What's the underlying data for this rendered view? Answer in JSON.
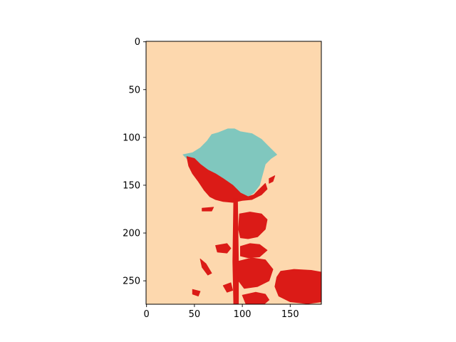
{
  "chart_data": {
    "type": "heatmap",
    "title": "",
    "xlabel": "",
    "ylabel": "",
    "image_shape": [
      275,
      183
    ],
    "xlim": [
      -0.5,
      182.5
    ],
    "ylim": [
      274.5,
      -0.5
    ],
    "xticks": [
      0,
      50,
      100,
      150
    ],
    "yticks": [
      0,
      50,
      100,
      150,
      200,
      250
    ],
    "xtick_labels": [
      "0",
      "50",
      "100",
      "150"
    ],
    "ytick_labels": [
      "0",
      "50",
      "100",
      "150",
      "200",
      "250"
    ],
    "palette": {
      "background": "#fdd8ae",
      "bloom": "#80c7be",
      "leaf_and_stem": "#db1b17"
    },
    "regions": [
      {
        "name": "rose-bloom",
        "color_key": "bloom",
        "polygon": [
          [
            38,
            118
          ],
          [
            48,
            116
          ],
          [
            56,
            111
          ],
          [
            63,
            104
          ],
          [
            68,
            97
          ],
          [
            75,
            95
          ],
          [
            85,
            91
          ],
          [
            92,
            91
          ],
          [
            98,
            94
          ],
          [
            110,
            96
          ],
          [
            120,
            102
          ],
          [
            128,
            110
          ],
          [
            136,
            118
          ],
          [
            130,
            122
          ],
          [
            124,
            128
          ],
          [
            118,
            150
          ],
          [
            112,
            158
          ],
          [
            106,
            162
          ],
          [
            98,
            158
          ],
          [
            90,
            150
          ],
          [
            80,
            143
          ],
          [
            72,
            138
          ],
          [
            64,
            134
          ],
          [
            56,
            128
          ],
          [
            50,
            122
          ],
          [
            44,
            124
          ],
          [
            40,
            120
          ]
        ]
      },
      {
        "name": "bloom-lower-petals",
        "color_key": "leaf_and_stem",
        "polygon": [
          [
            42,
            120
          ],
          [
            50,
            122
          ],
          [
            56,
            128
          ],
          [
            64,
            134
          ],
          [
            72,
            138
          ],
          [
            80,
            143
          ],
          [
            90,
            150
          ],
          [
            98,
            158
          ],
          [
            106,
            162
          ],
          [
            112,
            160
          ],
          [
            118,
            154
          ],
          [
            124,
            148
          ],
          [
            126,
            154
          ],
          [
            120,
            160
          ],
          [
            110,
            165
          ],
          [
            100,
            166
          ],
          [
            90,
            168
          ],
          [
            80,
            167
          ],
          [
            72,
            165
          ],
          [
            66,
            162
          ],
          [
            60,
            155
          ],
          [
            54,
            146
          ],
          [
            48,
            138
          ],
          [
            44,
            130
          ]
        ]
      },
      {
        "name": "stem",
        "color_key": "leaf_and_stem",
        "polygon": [
          [
            91,
            164
          ],
          [
            95,
            164
          ],
          [
            96,
            230
          ],
          [
            96,
            275
          ],
          [
            91,
            275
          ],
          [
            90,
            230
          ]
        ]
      },
      {
        "name": "leaf-upper",
        "color_key": "leaf_and_stem",
        "polygon": [
          [
            97,
            180
          ],
          [
            108,
            178
          ],
          [
            120,
            180
          ],
          [
            126,
            186
          ],
          [
            124,
            196
          ],
          [
            116,
            204
          ],
          [
            106,
            206
          ],
          [
            98,
            205
          ],
          [
            96,
            196
          ]
        ]
      },
      {
        "name": "leaf-middle",
        "color_key": "leaf_and_stem",
        "polygon": [
          [
            98,
            214
          ],
          [
            108,
            211
          ],
          [
            118,
            212
          ],
          [
            126,
            218
          ],
          [
            118,
            225
          ],
          [
            106,
            226
          ],
          [
            98,
            224
          ]
        ]
      },
      {
        "name": "leaf-lower",
        "color_key": "leaf_and_stem",
        "polygon": [
          [
            94,
            230
          ],
          [
            110,
            226
          ],
          [
            124,
            228
          ],
          [
            132,
            238
          ],
          [
            128,
            250
          ],
          [
            116,
            256
          ],
          [
            102,
            258
          ],
          [
            96,
            250
          ],
          [
            94,
            240
          ]
        ]
      },
      {
        "name": "leaf-bottom-right",
        "color_key": "leaf_and_stem",
        "polygon": [
          [
            140,
            240
          ],
          [
            154,
            238
          ],
          [
            172,
            239
          ],
          [
            183,
            241
          ],
          [
            183,
            272
          ],
          [
            168,
            274
          ],
          [
            150,
            272
          ],
          [
            138,
            266
          ],
          [
            134,
            256
          ],
          [
            136,
            246
          ]
        ]
      },
      {
        "name": "leaf-bottom-small",
        "color_key": "leaf_and_stem",
        "polygon": [
          [
            100,
            265
          ],
          [
            114,
            262
          ],
          [
            124,
            264
          ],
          [
            128,
            270
          ],
          [
            122,
            275
          ],
          [
            104,
            275
          ]
        ]
      },
      {
        "name": "fragment-left-branch",
        "color_key": "leaf_and_stem",
        "polygon": [
          [
            72,
            213
          ],
          [
            84,
            211
          ],
          [
            88,
            216
          ],
          [
            84,
            221
          ],
          [
            74,
            220
          ]
        ]
      },
      {
        "name": "fragment-stray-1",
        "color_key": "leaf_and_stem",
        "polygon": [
          [
            58,
            174
          ],
          [
            70,
            173
          ],
          [
            68,
            177
          ],
          [
            58,
            177
          ]
        ]
      },
      {
        "name": "fragment-stray-2",
        "color_key": "leaf_and_stem",
        "polygon": [
          [
            56,
            227
          ],
          [
            62,
            232
          ],
          [
            68,
            242
          ],
          [
            64,
            244
          ],
          [
            58,
            236
          ]
        ]
      },
      {
        "name": "fragment-stray-3",
        "color_key": "leaf_and_stem",
        "polygon": [
          [
            48,
            259
          ],
          [
            56,
            261
          ],
          [
            54,
            266
          ],
          [
            48,
            264
          ]
        ]
      },
      {
        "name": "fragment-stray-4",
        "color_key": "leaf_and_stem",
        "polygon": [
          [
            80,
            255
          ],
          [
            88,
            252
          ],
          [
            90,
            260
          ],
          [
            84,
            262
          ]
        ]
      },
      {
        "name": "fragment-stray-5",
        "color_key": "leaf_and_stem",
        "polygon": [
          [
            128,
            143
          ],
          [
            134,
            140
          ],
          [
            132,
            146
          ],
          [
            128,
            148
          ]
        ]
      }
    ]
  }
}
